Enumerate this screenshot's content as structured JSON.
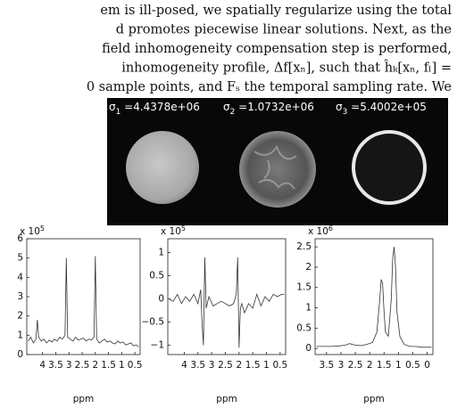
{
  "text_lines": [
    "em is ill-posed, we spatially regularize using the total",
    "d promotes piecewise linear solutions. Next, as the",
    "field inhomogeneity compensation step is performed,",
    "inhomogeneity profile, Δf[xₙ], such that ĥₖ[xₙ, fₗ] =",
    "0 sample points, and Fₛ the temporal sampling rate. We"
  ],
  "images": [
    {
      "symbol": "σ",
      "subscript": "1",
      "text": " =4.4378e+06"
    },
    {
      "symbol": "σ",
      "subscript": "2",
      "text": " =1.0732e+06"
    },
    {
      "symbol": "σ",
      "subscript": "3",
      "text": " =5.4002e+05"
    }
  ],
  "chart_data": [
    {
      "type": "line",
      "xlabel": "ppm",
      "multiplier": "x 10",
      "multiplier_exponent": "5",
      "color": "#333333",
      "xlim": [
        4.6,
        0.3
      ],
      "xticks": [
        4,
        3.5,
        3,
        2.5,
        2,
        1.5,
        1,
        0.5
      ],
      "ylim": [
        0,
        6
      ],
      "yticks": [
        0,
        1,
        2,
        3,
        4,
        5,
        6
      ],
      "x": [
        4.55,
        4.45,
        4.35,
        4.25,
        4.2,
        4.15,
        4.05,
        3.95,
        3.85,
        3.75,
        3.65,
        3.55,
        3.45,
        3.35,
        3.25,
        3.15,
        3.1,
        3.05,
        2.95,
        2.85,
        2.75,
        2.65,
        2.55,
        2.45,
        2.35,
        2.25,
        2.15,
        2.05,
        2.0,
        1.95,
        1.85,
        1.75,
        1.65,
        1.55,
        1.45,
        1.35,
        1.25,
        1.15,
        1.05,
        0.95,
        0.85,
        0.75,
        0.65,
        0.55,
        0.45,
        0.35
      ],
      "values": [
        0.7,
        0.9,
        0.6,
        0.8,
        1.8,
        0.9,
        0.7,
        0.8,
        0.6,
        0.75,
        0.65,
        0.8,
        0.7,
        0.9,
        0.8,
        1.0,
        5.0,
        0.9,
        0.8,
        0.7,
        0.9,
        0.75,
        0.8,
        0.85,
        0.7,
        0.8,
        0.75,
        0.9,
        5.1,
        0.8,
        0.6,
        0.7,
        0.8,
        0.65,
        0.7,
        0.6,
        0.55,
        0.7,
        0.6,
        0.65,
        0.5,
        0.55,
        0.6,
        0.45,
        0.5,
        0.4
      ]
    },
    {
      "type": "line",
      "xlabel": "ppm",
      "multiplier": "x 10",
      "multiplier_exponent": "5",
      "color": "#333333",
      "xlim": [
        4.6,
        0.3
      ],
      "xticks": [
        4,
        3.5,
        3,
        2.5,
        2,
        1.5,
        1,
        0.5
      ],
      "ylim": [
        -1.2,
        1.3
      ],
      "yticks": [
        {
          "value": -1,
          "label": "−1"
        },
        {
          "value": -0.5,
          "label": "−0.5"
        },
        0,
        0.5,
        1
      ],
      "x": [
        4.55,
        4.4,
        4.25,
        4.1,
        3.95,
        3.8,
        3.65,
        3.5,
        3.4,
        3.35,
        3.3,
        3.25,
        3.2,
        3.1,
        2.95,
        2.8,
        2.65,
        2.5,
        2.35,
        2.2,
        2.1,
        2.05,
        2.0,
        1.95,
        1.9,
        1.8,
        1.65,
        1.5,
        1.35,
        1.2,
        1.05,
        0.9,
        0.75,
        0.6,
        0.45,
        0.35
      ],
      "values": [
        0,
        -0.05,
        0.1,
        -0.1,
        0.05,
        -0.05,
        0.1,
        -0.1,
        0.2,
        -0.5,
        -1.0,
        0.9,
        -0.2,
        0.05,
        -0.15,
        -0.1,
        -0.05,
        -0.1,
        -0.15,
        -0.1,
        0.1,
        0.9,
        -1.05,
        -0.2,
        -0.1,
        -0.3,
        -0.1,
        -0.2,
        0.1,
        -0.15,
        0.05,
        -0.05,
        0.1,
        0.05,
        0.1,
        0.1
      ]
    },
    {
      "type": "line",
      "xlabel": "ppm",
      "multiplier": "x 10",
      "multiplier_exponent": "6",
      "color": "#333333",
      "xlim": [
        3.9,
        -0.2
      ],
      "xticks": [
        3.5,
        3,
        2.5,
        2,
        1.5,
        1,
        0.5,
        0
      ],
      "ylim": [
        -0.15,
        2.7
      ],
      "yticks": [
        0,
        0.5,
        1,
        1.5,
        2,
        2.5
      ],
      "x": [
        3.85,
        3.6,
        3.35,
        3.1,
        2.85,
        2.7,
        2.6,
        2.5,
        2.3,
        2.1,
        1.9,
        1.75,
        1.65,
        1.6,
        1.55,
        1.5,
        1.45,
        1.35,
        1.25,
        1.2,
        1.15,
        1.1,
        1.05,
        0.95,
        0.8,
        0.6,
        0.4,
        0.2,
        0.0,
        -0.15
      ],
      "values": [
        0.05,
        0.05,
        0.05,
        0.06,
        0.08,
        0.12,
        0.1,
        0.08,
        0.07,
        0.1,
        0.15,
        0.4,
        1.2,
        1.7,
        1.6,
        0.9,
        0.4,
        0.3,
        1.2,
        2.2,
        2.5,
        2.0,
        0.9,
        0.3,
        0.1,
        0.05,
        0.05,
        0.03,
        0.03,
        0.03
      ]
    }
  ]
}
